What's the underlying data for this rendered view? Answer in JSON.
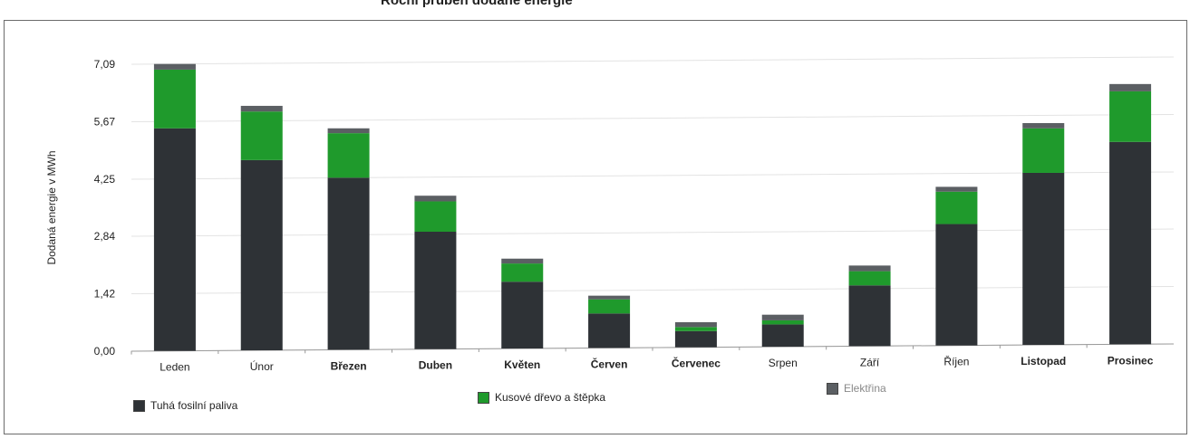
{
  "title": "Roční průběh dodané energie",
  "colors": {
    "solid": "#2e3236",
    "wood": "#1f9a2c",
    "electric": "#5b5f63",
    "grid": "#e3e3e3",
    "axis": "#9a9a9a"
  },
  "chart_data": {
    "type": "bar",
    "stacked": true,
    "ylabel": "Dodaná energie v MWh",
    "xlabel": "",
    "ylim": [
      0,
      7.09
    ],
    "yticks": [
      "0,00",
      "1,42",
      "2,84",
      "4,25",
      "5,67",
      "7,09"
    ],
    "ytick_values": [
      0,
      1.42,
      2.84,
      4.25,
      5.67,
      7.09
    ],
    "grid": true,
    "legend": "bottom",
    "categories": [
      "Leden",
      "Únor",
      "Březen",
      "Duben",
      "Květen",
      "Červen",
      "Červenec",
      "Srpen",
      "Září",
      "Říjen",
      "Listopad",
      "Prosinec"
    ],
    "series": [
      {
        "name": "Tuhá fosilní paliva",
        "color": "#2e3236",
        "values": [
          5.5,
          4.7,
          4.25,
          2.9,
          1.65,
          0.85,
          0.4,
          0.55,
          1.5,
          3.0,
          4.25,
          5.0
        ]
      },
      {
        "name": "Kusové dřevo a štěpka",
        "color": "#1f9a2c",
        "values": [
          1.45,
          1.2,
          1.1,
          0.75,
          0.45,
          0.35,
          0.1,
          0.1,
          0.35,
          0.8,
          1.1,
          1.25
        ]
      },
      {
        "name": "Elektřina",
        "color": "#5b5f63",
        "values": [
          0.14,
          0.14,
          0.12,
          0.14,
          0.12,
          0.09,
          0.12,
          0.14,
          0.14,
          0.12,
          0.13,
          0.18
        ]
      }
    ]
  }
}
